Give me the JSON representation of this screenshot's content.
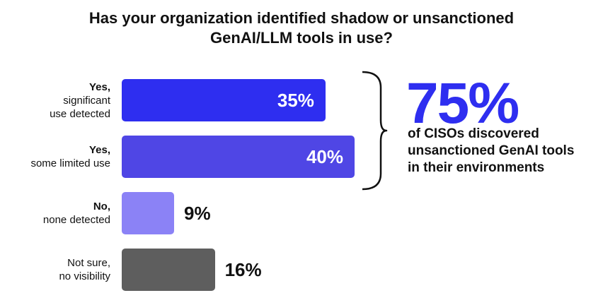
{
  "chart_data": {
    "type": "bar",
    "orientation": "horizontal",
    "title_lines": [
      "Has your organization identified shadow or unsanctioned",
      "GenAI/LLM tools in use?"
    ],
    "categories": [
      {
        "strong": "Yes,",
        "rest": [
          "significant",
          "use detected"
        ]
      },
      {
        "strong": "Yes,",
        "rest": [
          "some limited use"
        ]
      },
      {
        "strong": "No,",
        "rest": [
          "none detected"
        ]
      },
      {
        "strong": "",
        "rest": [
          "Not sure,",
          "no visibility"
        ]
      }
    ],
    "values": [
      35,
      40,
      9,
      16
    ],
    "value_labels": [
      "35%",
      "40%",
      "9%",
      "16%"
    ],
    "colors": [
      "#2e2ef0",
      "#4f46e5",
      "#8b82f6",
      "#5e5e5e"
    ],
    "label_inside": [
      true,
      true,
      false,
      false
    ],
    "xlim": [
      0,
      40
    ]
  },
  "callout": {
    "big_value": "75%",
    "big_color": "#2e2ef0",
    "text_lines": [
      "of CISOs discovered",
      "unsanctioned GenAI tools",
      "in their environments"
    ]
  }
}
